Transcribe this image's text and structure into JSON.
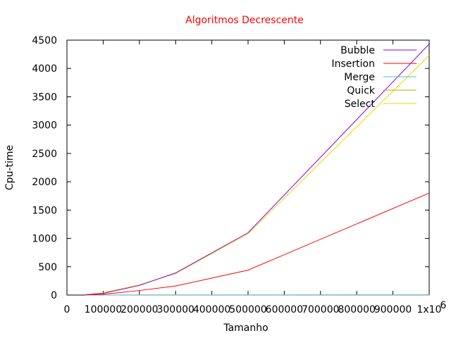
{
  "chart_data": {
    "type": "line",
    "title": "Algoritmos Decrescente",
    "xlabel": "Tamanho",
    "ylabel": "Cpu-time",
    "xlim": [
      0,
      1000000
    ],
    "ylim": [
      0,
      4500
    ],
    "x_tick_labels": [
      "0",
      "100000",
      "200000",
      "300000",
      "400000",
      "500000",
      "600000",
      "700000",
      "800000",
      "900000",
      "1x10"
    ],
    "x_tick_exponent": "6",
    "y_ticks": [
      0,
      500,
      1000,
      1500,
      2000,
      2500,
      3000,
      3500,
      4000,
      4500
    ],
    "grid": false,
    "legend_position": "top-right",
    "series": [
      {
        "name": "Bubble",
        "color": "#9400d3",
        "x": [
          50000,
          100000,
          200000,
          300000,
          500000,
          1000000
        ],
        "y": [
          5,
          30,
          170,
          390,
          1100,
          4430
        ]
      },
      {
        "name": "Insertion",
        "color": "#ff0000",
        "x": [
          50000,
          100000,
          200000,
          300000,
          500000,
          1000000
        ],
        "y": [
          3,
          12,
          80,
          160,
          440,
          1800
        ]
      },
      {
        "name": "Merge",
        "color": "#56b4e9",
        "x": [
          50000,
          100000,
          200000,
          300000,
          500000,
          1000000
        ],
        "y": [
          0,
          0,
          1,
          1,
          2,
          3
        ]
      },
      {
        "name": "Quick",
        "color": "#d2a000",
        "x": [
          50000,
          100000,
          200000,
          300000,
          500000,
          1000000
        ],
        "y": [
          0,
          0,
          1,
          1,
          1,
          2
        ]
      },
      {
        "name": "Select",
        "color": "#e6d800",
        "x": [
          50000,
          100000,
          200000,
          300000,
          500000,
          1000000
        ],
        "y": [
          5,
          40,
          180,
          380,
          1080,
          4230
        ]
      }
    ]
  }
}
